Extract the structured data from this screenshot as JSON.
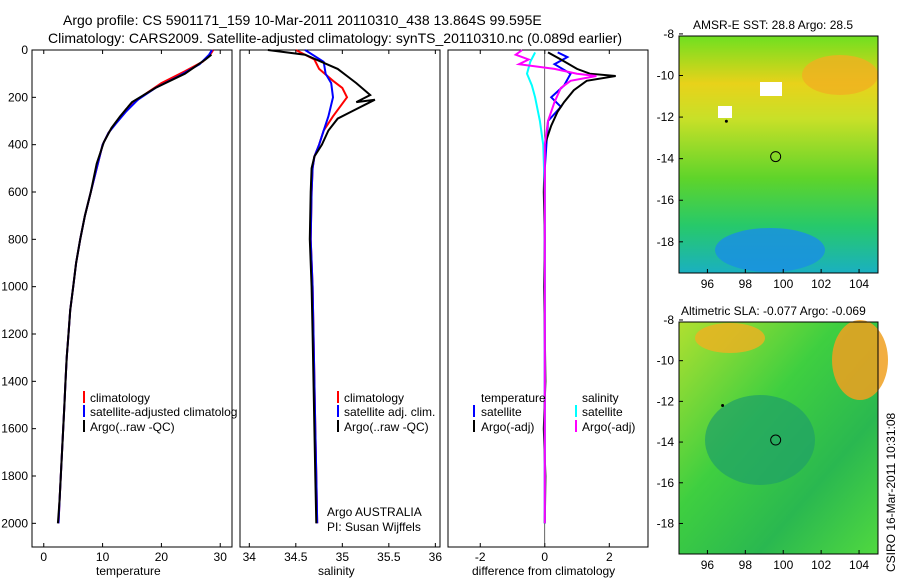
{
  "title_line1": "Argo profile: CS 5901171_159 10-Mar-2011 20110310_438 13.864S 99.595E",
  "title_line2": "Climatology: CARS2009. Satellite-adjusted climatology: synTS_20110310.nc (0.089d earlier)",
  "side_label": "CSIRO 16-Mar-2011 10:31:08",
  "chart_data": [
    {
      "type": "line",
      "xlabel": "temperature",
      "ylabel": "",
      "xlim": [
        -2,
        32
      ],
      "ylim": [
        2100,
        0
      ],
      "xticks": [
        0,
        10,
        20,
        30
      ],
      "yticks": [
        0,
        200,
        400,
        600,
        800,
        1000,
        1200,
        1400,
        1600,
        1800,
        2000
      ],
      "legend": [
        "climatology",
        "satellite-adjusted climatolog",
        "Argo(..raw -QC)"
      ],
      "series": [
        {
          "name": "climatology",
          "color": "#ff0000",
          "points": [
            [
              28.8,
              0
            ],
            [
              28.3,
              20
            ],
            [
              27,
              50
            ],
            [
              24,
              90
            ],
            [
              20,
              140
            ],
            [
              17,
              190
            ],
            [
              14,
              250
            ],
            [
              12.5,
              300
            ],
            [
              11,
              350
            ],
            [
              10,
              400
            ],
            [
              9,
              500
            ],
            [
              8,
              600
            ],
            [
              7,
              700
            ],
            [
              6.2,
              800
            ],
            [
              5.5,
              900
            ],
            [
              5,
              1000
            ],
            [
              4.5,
              1100
            ],
            [
              4.2,
              1200
            ],
            [
              3.9,
              1300
            ],
            [
              3.7,
              1400
            ],
            [
              3.5,
              1500
            ],
            [
              3.3,
              1600
            ],
            [
              3.1,
              1700
            ],
            [
              2.9,
              1800
            ],
            [
              2.7,
              1900
            ],
            [
              2.5,
              2000
            ]
          ]
        },
        {
          "name": "satellite-adjusted",
          "color": "#0000ff",
          "points": [
            [
              28.6,
              0
            ],
            [
              28.1,
              20
            ],
            [
              26.5,
              60
            ],
            [
              23,
              110
            ],
            [
              19,
              160
            ],
            [
              16,
              210
            ],
            [
              14,
              260
            ],
            [
              12.3,
              310
            ],
            [
              11,
              350
            ],
            [
              10,
              400
            ],
            [
              9,
              500
            ],
            [
              8,
              600
            ],
            [
              7,
              700
            ],
            [
              6.2,
              800
            ],
            [
              5.5,
              900
            ],
            [
              5,
              1000
            ],
            [
              4.5,
              1100
            ],
            [
              4.2,
              1200
            ],
            [
              3.9,
              1300
            ],
            [
              3.7,
              1400
            ],
            [
              3.5,
              1500
            ],
            [
              3.3,
              1600
            ],
            [
              3.1,
              1700
            ],
            [
              2.9,
              1800
            ],
            [
              2.7,
              1900
            ],
            [
              2.5,
              2000
            ]
          ]
        },
        {
          "name": "Argo",
          "color": "#000000",
          "points": [
            [
              28.5,
              20
            ],
            [
              27.5,
              40
            ],
            [
              24,
              100
            ],
            [
              19,
              160
            ],
            [
              15,
              220
            ],
            [
              13,
              280
            ],
            [
              11.5,
              330
            ],
            [
              10.2,
              390
            ],
            [
              9,
              480
            ],
            [
              8,
              600
            ],
            [
              7,
              700
            ],
            [
              6.2,
              800
            ],
            [
              5.5,
              900
            ],
            [
              5,
              1000
            ],
            [
              4.5,
              1100
            ],
            [
              4.2,
              1200
            ],
            [
              3.9,
              1300
            ],
            [
              3.7,
              1400
            ],
            [
              3.5,
              1500
            ],
            [
              3.3,
              1600
            ],
            [
              3.1,
              1700
            ],
            [
              2.9,
              1800
            ],
            [
              2.7,
              1900
            ],
            [
              2.4,
              2000
            ]
          ]
        }
      ],
      "annotations": []
    },
    {
      "type": "line",
      "xlabel": "salinity",
      "xlim": [
        33.9,
        36.05
      ],
      "ylim": [
        2100,
        0
      ],
      "xticks": [
        34,
        34.5,
        35,
        35.5,
        36
      ],
      "yticks": [],
      "legend": [
        "climatology",
        "satellite adj. clim.",
        "Argo(..raw -QC)"
      ],
      "series": [
        {
          "name": "climatology",
          "color": "#ff0000",
          "points": [
            [
              34.5,
              0
            ],
            [
              34.7,
              40
            ],
            [
              34.75,
              80
            ],
            [
              34.9,
              130
            ],
            [
              35.0,
              160
            ],
            [
              35.05,
              200
            ],
            [
              34.9,
              280
            ],
            [
              34.8,
              340
            ],
            [
              34.75,
              400
            ],
            [
              34.7,
              450
            ],
            [
              34.68,
              500
            ],
            [
              34.67,
              600
            ],
            [
              34.66,
              800
            ],
            [
              34.68,
              1000
            ],
            [
              34.69,
              1200
            ],
            [
              34.7,
              1400
            ],
            [
              34.71,
              1600
            ],
            [
              34.72,
              1800
            ],
            [
              34.73,
              2000
            ]
          ]
        },
        {
          "name": "satellite adj. clim.",
          "color": "#0000ff",
          "points": [
            [
              34.6,
              0
            ],
            [
              34.8,
              50
            ],
            [
              34.82,
              100
            ],
            [
              34.88,
              140
            ],
            [
              34.9,
              200
            ],
            [
              34.85,
              280
            ],
            [
              34.8,
              340
            ],
            [
              34.75,
              400
            ],
            [
              34.7,
              450
            ],
            [
              34.68,
              500
            ],
            [
              34.67,
              600
            ],
            [
              34.66,
              800
            ],
            [
              34.68,
              1000
            ],
            [
              34.69,
              1200
            ],
            [
              34.7,
              1400
            ],
            [
              34.71,
              1600
            ],
            [
              34.72,
              1800
            ],
            [
              34.73,
              2000
            ]
          ]
        },
        {
          "name": "Argo",
          "color": "#000000",
          "points": [
            [
              34.2,
              0
            ],
            [
              34.6,
              20
            ],
            [
              34.95,
              80
            ],
            [
              35.05,
              110
            ],
            [
              35.15,
              140
            ],
            [
              35.3,
              190
            ],
            [
              35.15,
              220
            ],
            [
              35.35,
              210
            ],
            [
              35.1,
              260
            ],
            [
              34.95,
              290
            ],
            [
              34.85,
              340
            ],
            [
              34.78,
              400
            ],
            [
              34.7,
              450
            ],
            [
              34.67,
              500
            ],
            [
              34.66,
              600
            ],
            [
              34.65,
              800
            ],
            [
              34.67,
              1000
            ],
            [
              34.68,
              1200
            ],
            [
              34.69,
              1400
            ],
            [
              34.7,
              1600
            ],
            [
              34.71,
              1800
            ],
            [
              34.72,
              2000
            ]
          ]
        }
      ],
      "annotations": [
        "Argo AUSTRALIA",
        "PI: Susan Wijffels"
      ]
    },
    {
      "type": "line",
      "xlabel": "difference from climatology",
      "xlim": [
        -3,
        3.2
      ],
      "ylim": [
        2100,
        0
      ],
      "xticks": [
        -2,
        0,
        2
      ],
      "yticks": [],
      "legend_left_title": "temperature",
      "legend_right_title": "salinity",
      "legend": [
        "satellite",
        "Argo(-adj)",
        "satellite",
        "Argo(-adj)"
      ],
      "series": [
        {
          "name": "temperature satellite",
          "color": "#0000ff",
          "points": [
            [
              0.4,
              10
            ],
            [
              0.7,
              30
            ],
            [
              0.3,
              60
            ],
            [
              0.8,
              100
            ],
            [
              0.6,
              150
            ],
            [
              0.2,
              200
            ],
            [
              0.5,
              240
            ],
            [
              0.1,
              300
            ],
            [
              0.05,
              400
            ],
            [
              0,
              500
            ],
            [
              0,
              2000
            ]
          ]
        },
        {
          "name": "temperature Argo(-adj)",
          "color": "#000000",
          "points": [
            [
              0.1,
              10
            ],
            [
              0.5,
              40
            ],
            [
              1.0,
              80
            ],
            [
              1.4,
              100
            ],
            [
              2.2,
              110
            ],
            [
              1.3,
              130
            ],
            [
              0.9,
              170
            ],
            [
              0.6,
              220
            ],
            [
              0.4,
              260
            ],
            [
              0.2,
              320
            ],
            [
              0,
              400
            ],
            [
              -0.03,
              600
            ],
            [
              0,
              800
            ],
            [
              -0.02,
              1000
            ],
            [
              0,
              1200
            ],
            [
              0.02,
              1400
            ],
            [
              -0.03,
              1600
            ],
            [
              0.02,
              1800
            ],
            [
              0,
              2000
            ]
          ]
        },
        {
          "name": "salinity satellite",
          "color": "#00ffff",
          "points": [
            [
              -0.3,
              10
            ],
            [
              -0.45,
              50
            ],
            [
              -0.55,
              100
            ],
            [
              -0.4,
              150
            ],
            [
              -0.3,
              200
            ],
            [
              -0.15,
              300
            ],
            [
              -0.05,
              400
            ],
            [
              0,
              600
            ],
            [
              0,
              2000
            ]
          ]
        },
        {
          "name": "salinity Argo(-adj)",
          "color": "#ff00ff",
          "points": [
            [
              -0.7,
              0
            ],
            [
              -0.9,
              20
            ],
            [
              -0.5,
              40
            ],
            [
              -0.8,
              60
            ],
            [
              0.3,
              80
            ],
            [
              1.0,
              100
            ],
            [
              1.6,
              110
            ],
            [
              0.8,
              130
            ],
            [
              0.5,
              160
            ],
            [
              0.3,
              220
            ],
            [
              0.1,
              300
            ],
            [
              0,
              400
            ],
            [
              0,
              2000
            ]
          ]
        }
      ],
      "annotations": []
    },
    {
      "type": "heatmap",
      "title": "AMSR-E SST: 28.8 Argo: 28.5",
      "xlim": [
        94.5,
        105
      ],
      "ylim": [
        -19.5,
        -8.1
      ],
      "xticks": [
        96,
        98,
        100,
        102,
        104
      ],
      "yticks": [
        -8,
        -10,
        -12,
        -14,
        -16,
        -18
      ],
      "profile_location": [
        99.6,
        -13.9
      ],
      "point": [
        97.0,
        -12.2
      ]
    },
    {
      "type": "heatmap",
      "title": "Altimetric SLA: -0.077 Argo: -0.069",
      "xlim": [
        94.5,
        105
      ],
      "ylim": [
        -19.5,
        -8.1
      ],
      "xticks": [
        96,
        98,
        100,
        102,
        104
      ],
      "yticks": [
        -8,
        -10,
        -12,
        -14,
        -16,
        -18
      ],
      "profile_location": [
        99.6,
        -13.9
      ],
      "point": [
        96.8,
        -12.2
      ]
    }
  ]
}
